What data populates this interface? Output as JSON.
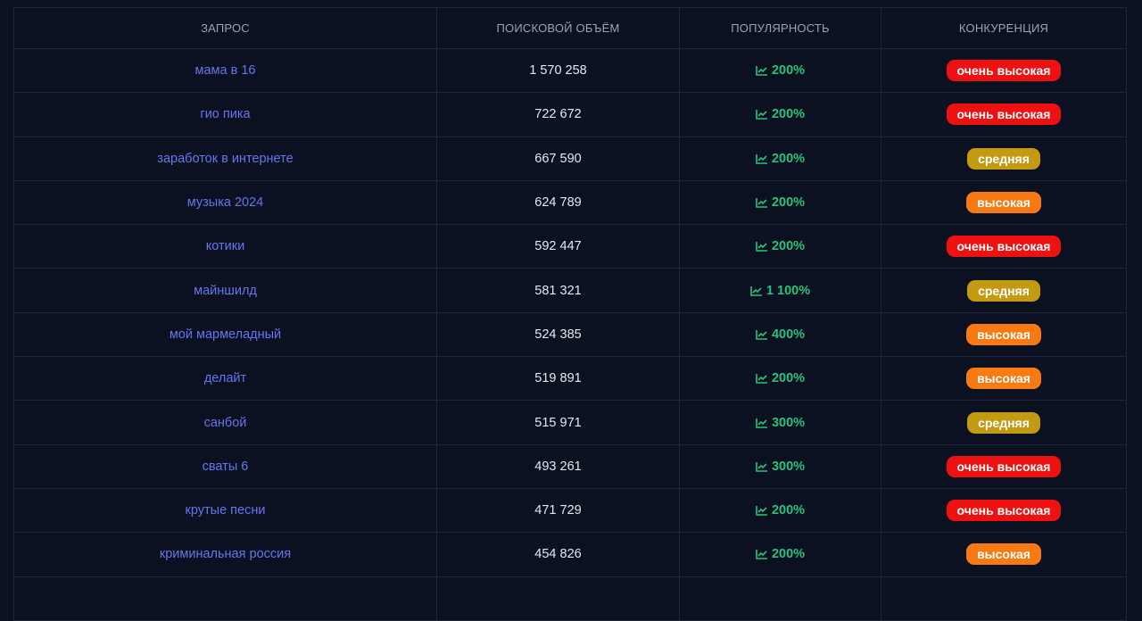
{
  "table": {
    "headers": [
      "ЗАПРОС",
      "ПОИСКОВОЙ ОБЪЁМ",
      "ПОПУЛЯРНОСТЬ",
      "КОНКУРЕНЦИЯ"
    ],
    "rows": [
      {
        "query": "мама в 16",
        "volume": "1 570 258",
        "popularity": "200%",
        "competition": "очень высокая",
        "badge_color": "#ee1111"
      },
      {
        "query": "гио пика",
        "volume": "722 672",
        "popularity": "200%",
        "competition": "очень высокая",
        "badge_color": "#ee1111"
      },
      {
        "query": "заработок в интернете",
        "volume": "667 590",
        "popularity": "200%",
        "competition": "средняя",
        "badge_color": "#c49a12"
      },
      {
        "query": "музыка 2024",
        "volume": "624 789",
        "popularity": "200%",
        "competition": "высокая",
        "badge_color": "#f97a12"
      },
      {
        "query": "котики",
        "volume": "592 447",
        "popularity": "200%",
        "competition": "очень высокая",
        "badge_color": "#ee1111"
      },
      {
        "query": "майншилд",
        "volume": "581 321",
        "popularity": "1 100%",
        "competition": "средняя",
        "badge_color": "#c49a12"
      },
      {
        "query": "мой мармеладный",
        "volume": "524 385",
        "popularity": "400%",
        "competition": "высокая",
        "badge_color": "#f97a12"
      },
      {
        "query": "делайт",
        "volume": "519 891",
        "popularity": "200%",
        "competition": "высокая",
        "badge_color": "#f97a12"
      },
      {
        "query": "санбой",
        "volume": "515 971",
        "popularity": "300%",
        "competition": "средняя",
        "badge_color": "#c49a12"
      },
      {
        "query": "сваты 6",
        "volume": "493 261",
        "popularity": "300%",
        "competition": "очень высокая",
        "badge_color": "#ee1111"
      },
      {
        "query": "крутые песни",
        "volume": "471 729",
        "popularity": "200%",
        "competition": "очень высокая",
        "badge_color": "#ee1111"
      },
      {
        "query": "криминальная россия",
        "volume": "454 826",
        "popularity": "200%",
        "competition": "высокая",
        "badge_color": "#f97a12"
      }
    ]
  }
}
